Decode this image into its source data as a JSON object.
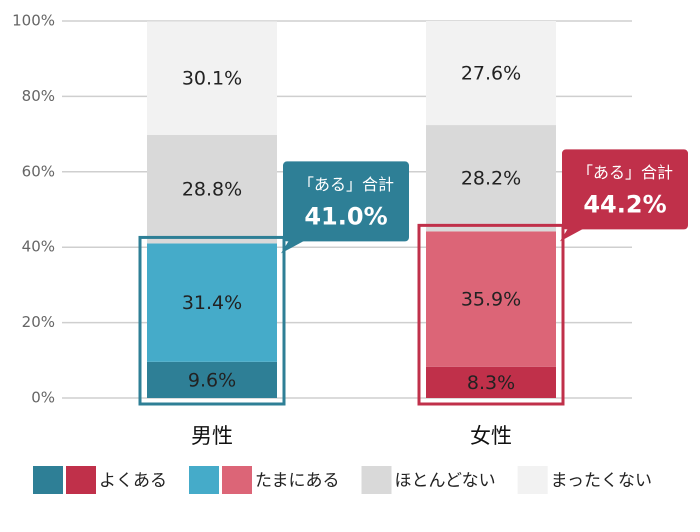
{
  "chart_data": {
    "type": "stacked_bar",
    "categories": [
      "男性",
      "女性"
    ],
    "series": [
      {
        "name": "よくある",
        "color": [
          "#2e7f96",
          "#c0304a"
        ],
        "values": [
          9.6,
          8.3
        ],
        "value_labels": [
          "9.6%",
          "8.3%"
        ]
      },
      {
        "name": "たまにある",
        "color": [
          "#45abc9",
          "#dc6577"
        ],
        "values": [
          31.4,
          35.9
        ],
        "value_labels": [
          "31.4%",
          "35.9%"
        ]
      },
      {
        "name": "ほとんどない",
        "color": "#d9d9d9",
        "values": [
          28.8,
          28.2
        ],
        "value_labels": [
          "28.8%",
          "28.2%"
        ]
      },
      {
        "name": "まったくない",
        "color": "#f2f2f2",
        "values": [
          30.1,
          27.6
        ],
        "value_labels": [
          "30.1%",
          "27.6%"
        ]
      }
    ],
    "annotations": [
      {
        "text": "「ある」合計",
        "value": 41.0,
        "value_label": "41.0%"
      },
      {
        "text": "「ある」合計",
        "value": 44.2,
        "value_label": "44.2%"
      }
    ],
    "ylim": [
      0,
      100
    ],
    "yticks": [
      {
        "value": 0,
        "label": "0%"
      },
      {
        "value": 20,
        "label": "20%"
      },
      {
        "value": 40,
        "label": "40%"
      },
      {
        "value": 60,
        "label": "60%"
      },
      {
        "value": 80,
        "label": "80%"
      },
      {
        "value": 100,
        "label": "100%"
      }
    ],
    "grid": true
  }
}
